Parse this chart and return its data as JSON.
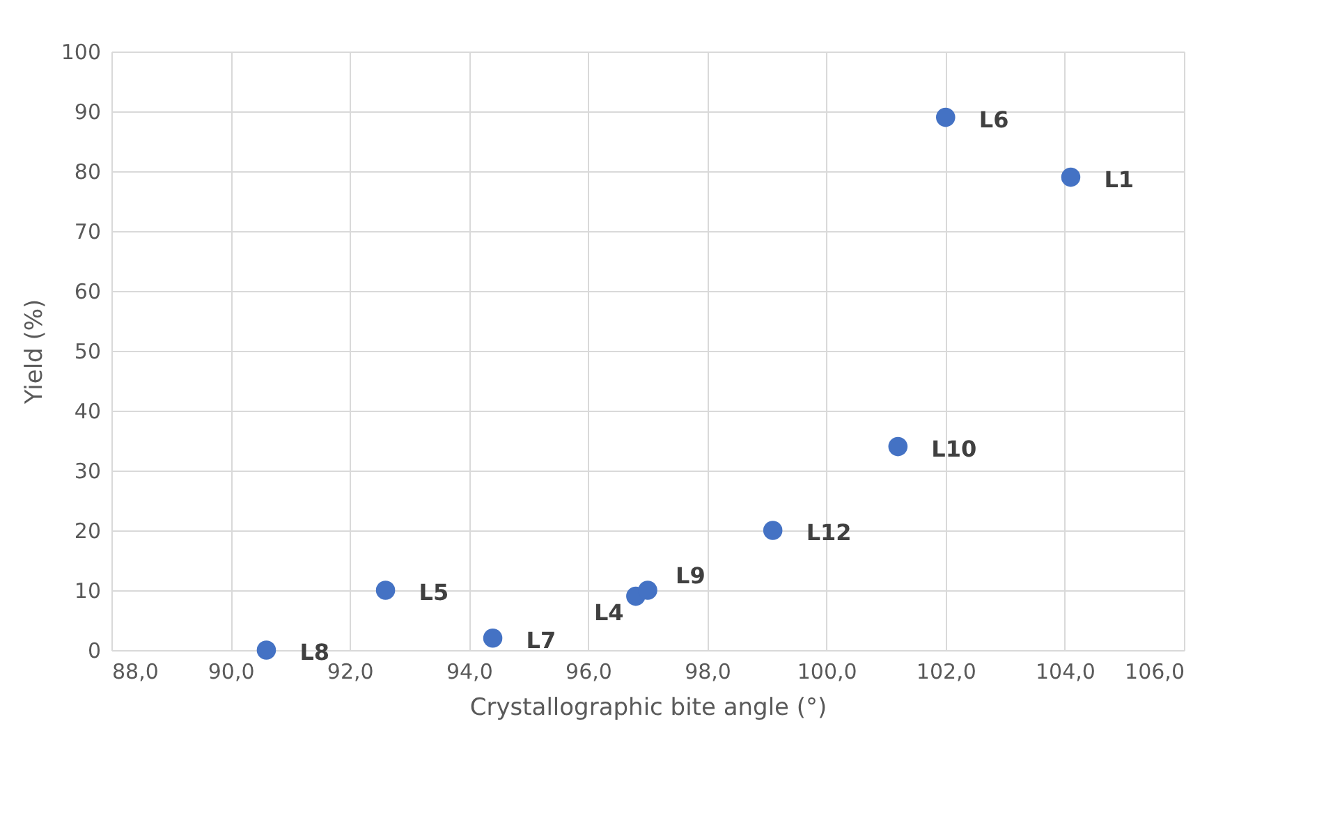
{
  "chart_data": {
    "type": "scatter",
    "xlabel": "Crystallographic bite angle (°)",
    "ylabel": "Yield (%)",
    "x": [
      104.1,
      90.6,
      92.6,
      96.8,
      94.4,
      102.0,
      97.0,
      101.2,
      99.1
    ],
    "series": [
      {
        "color": "#4472c4",
        "values": [
          79,
          0,
          10,
          9,
          2,
          89,
          10,
          34,
          20
        ]
      }
    ],
    "annotations": [
      {
        "text": "L1",
        "x": 104.1,
        "y": 79
      },
      {
        "text": "L8",
        "x": 90.6,
        "y": 0
      },
      {
        "text": "L5",
        "x": 92.6,
        "y": 10
      },
      {
        "text": "L4",
        "x": 96.8,
        "y": 9
      },
      {
        "text": "L7",
        "x": 94.4,
        "y": 2
      },
      {
        "text": "L6",
        "x": 102.0,
        "y": 89
      },
      {
        "text": "L9",
        "x": 97.0,
        "y": 10
      },
      {
        "text": "L10",
        "x": 101.2,
        "y": 34
      },
      {
        "text": "L12",
        "x": 99.1,
        "y": 20
      }
    ],
    "xlim": [
      88,
      106
    ],
    "xticks": [
      {
        "value": 88,
        "label": "88,0"
      },
      {
        "value": 90,
        "label": "90,0"
      },
      {
        "value": 92,
        "label": "92,0"
      },
      {
        "value": 94,
        "label": "94,0"
      },
      {
        "value": 96,
        "label": "96,0"
      },
      {
        "value": 98,
        "label": "98,0"
      },
      {
        "value": 100,
        "label": "100,0"
      },
      {
        "value": 102,
        "label": "102,0"
      },
      {
        "value": 104,
        "label": "104,0"
      },
      {
        "value": 106,
        "label": "106,0"
      }
    ],
    "ylim": [
      0,
      100
    ],
    "yticks": [
      0,
      10,
      20,
      30,
      40,
      50,
      60,
      70,
      80,
      90,
      100
    ],
    "grid": true,
    "marker": "circle"
  }
}
